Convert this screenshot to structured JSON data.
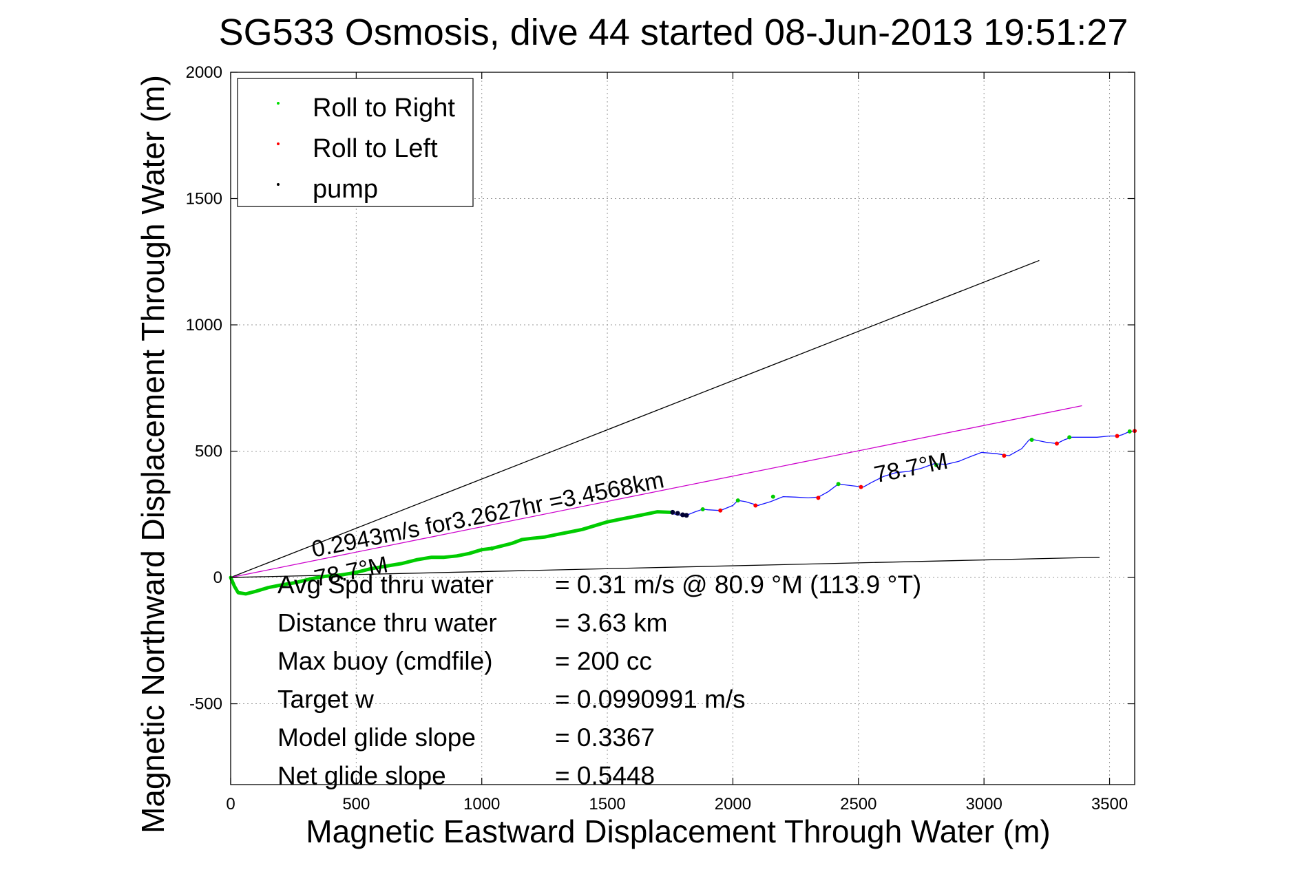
{
  "chart_data": {
    "type": "scatter",
    "title": "SG533 Osmosis, dive 44 started 08-Jun-2013 19:51:27",
    "xlabel": "Magnetic Eastward Displacement Through Water (m)",
    "ylabel": "Magnetic Northward Displacement Through Water (m)",
    "xlim": [
      0,
      3600
    ],
    "ylim": [
      -820,
      2000
    ],
    "xticks": [
      0,
      500,
      1000,
      1500,
      2000,
      2500,
      3000,
      3500
    ],
    "yticks": [
      -500,
      0,
      500,
      1000,
      1500,
      2000
    ],
    "xtick_labels": [
      "0",
      "500",
      "1000",
      "1500",
      "2000",
      "2500",
      "3000",
      "3500"
    ],
    "ytick_labels": [
      "-500",
      "0",
      "500",
      "1000",
      "1500",
      "2000"
    ],
    "grid": true,
    "legend_position": "top-left",
    "legend": [
      {
        "label": "Roll to Right",
        "color": "#00dd00"
      },
      {
        "label": "Roll to Left",
        "color": "#ff0000"
      },
      {
        "label": "pump",
        "color": "#000000"
      }
    ],
    "colors": {
      "track": "#1515ff",
      "roll_right": "#00cc00",
      "roll_left": "#ff0000",
      "pump": "#000033",
      "heading_line": "#000000",
      "mean_line": "#cc00cc",
      "grid": "#999999"
    },
    "series": [
      {
        "role": "track",
        "x": [
          0,
          15,
          30,
          60,
          100,
          150,
          200,
          260,
          320,
          380,
          440,
          500,
          560,
          620,
          680,
          740,
          800,
          850,
          900,
          950,
          1000,
          1040,
          1080,
          1120,
          1160,
          1200,
          1250,
          1300,
          1350,
          1400,
          1450,
          1500,
          1550,
          1600,
          1650,
          1700,
          1750,
          1770,
          1800,
          1820,
          1850,
          1880,
          1900,
          1950,
          2000,
          2020,
          2050,
          2100,
          2150,
          2200,
          2250,
          2300,
          2340,
          2380,
          2420,
          2460,
          2500,
          2520,
          2550,
          2600,
          2650,
          2700,
          2750,
          2800,
          2850,
          2900,
          2950,
          2990,
          3050,
          3100,
          3150,
          3180,
          3200,
          3250,
          3290,
          3320,
          3350,
          3400,
          3450,
          3500,
          3530,
          3550,
          3580,
          3600
        ],
        "y": [
          0,
          -35,
          -60,
          -65,
          -55,
          -40,
          -30,
          -20,
          -5,
          5,
          10,
          20,
          35,
          45,
          55,
          70,
          80,
          80,
          85,
          95,
          110,
          115,
          125,
          135,
          150,
          155,
          160,
          170,
          180,
          190,
          205,
          220,
          230,
          240,
          250,
          260,
          258,
          250,
          245,
          248,
          260,
          270,
          268,
          265,
          285,
          305,
          300,
          285,
          300,
          320,
          318,
          315,
          318,
          340,
          370,
          365,
          360,
          358,
          375,
          400,
          415,
          420,
          432,
          450,
          448,
          460,
          480,
          495,
          490,
          482,
          510,
          545,
          545,
          535,
          530,
          545,
          555,
          555,
          555,
          560,
          560,
          565,
          578,
          580
        ]
      },
      {
        "role": "roll_right",
        "x": [
          500,
          1040,
          1880,
          2020,
          2160,
          2420,
          2810,
          3190,
          3340,
          3580
        ],
        "y": [
          20,
          115,
          270,
          305,
          320,
          370,
          445,
          545,
          555,
          578
        ]
      },
      {
        "role": "roll_left",
        "x": [
          1950,
          2090,
          2340,
          2510,
          3080,
          3290,
          3530,
          3600
        ],
        "y": [
          265,
          285,
          315,
          358,
          482,
          530,
          560,
          580
        ]
      },
      {
        "role": "pump",
        "x": [
          1760,
          1780,
          1800,
          1815
        ],
        "y": [
          258,
          254,
          248,
          246
        ]
      },
      {
        "role": "heading_upper",
        "x": [
          0,
          3220
        ],
        "y": [
          0,
          1255
        ]
      },
      {
        "role": "heading_mean",
        "x": [
          0,
          3390
        ],
        "y": [
          0,
          680
        ]
      },
      {
        "role": "heading_lower",
        "x": [
          0,
          3460
        ],
        "y": [
          0,
          80
        ]
      }
    ],
    "annotations": [
      {
        "text": "0.2943m/s for3.2627hr =3.4568km",
        "x": 330,
        "y": 80,
        "rotation": -11.3
      },
      {
        "text": "78.7°M",
        "x": 340,
        "y": -35,
        "rotation": -11.3
      },
      {
        "text": "78.7°M",
        "x": 2570,
        "y": 375,
        "rotation": -11.3
      }
    ],
    "stats": [
      {
        "label": "Avg Spd thru water",
        "value": "=  0.31 m/s @  80.9 °M (113.9 °T)"
      },
      {
        "label": "Distance thru water",
        "value": "=  3.63 km"
      },
      {
        "label": "Max buoy (cmdfile)",
        "value": "= 200 cc"
      },
      {
        "label": "Target w",
        "value": "= 0.0990991 m/s"
      },
      {
        "label": "Model glide slope",
        "value": "= 0.3367"
      },
      {
        "label": "Net glide slope",
        "value": "= 0.5448"
      }
    ]
  }
}
